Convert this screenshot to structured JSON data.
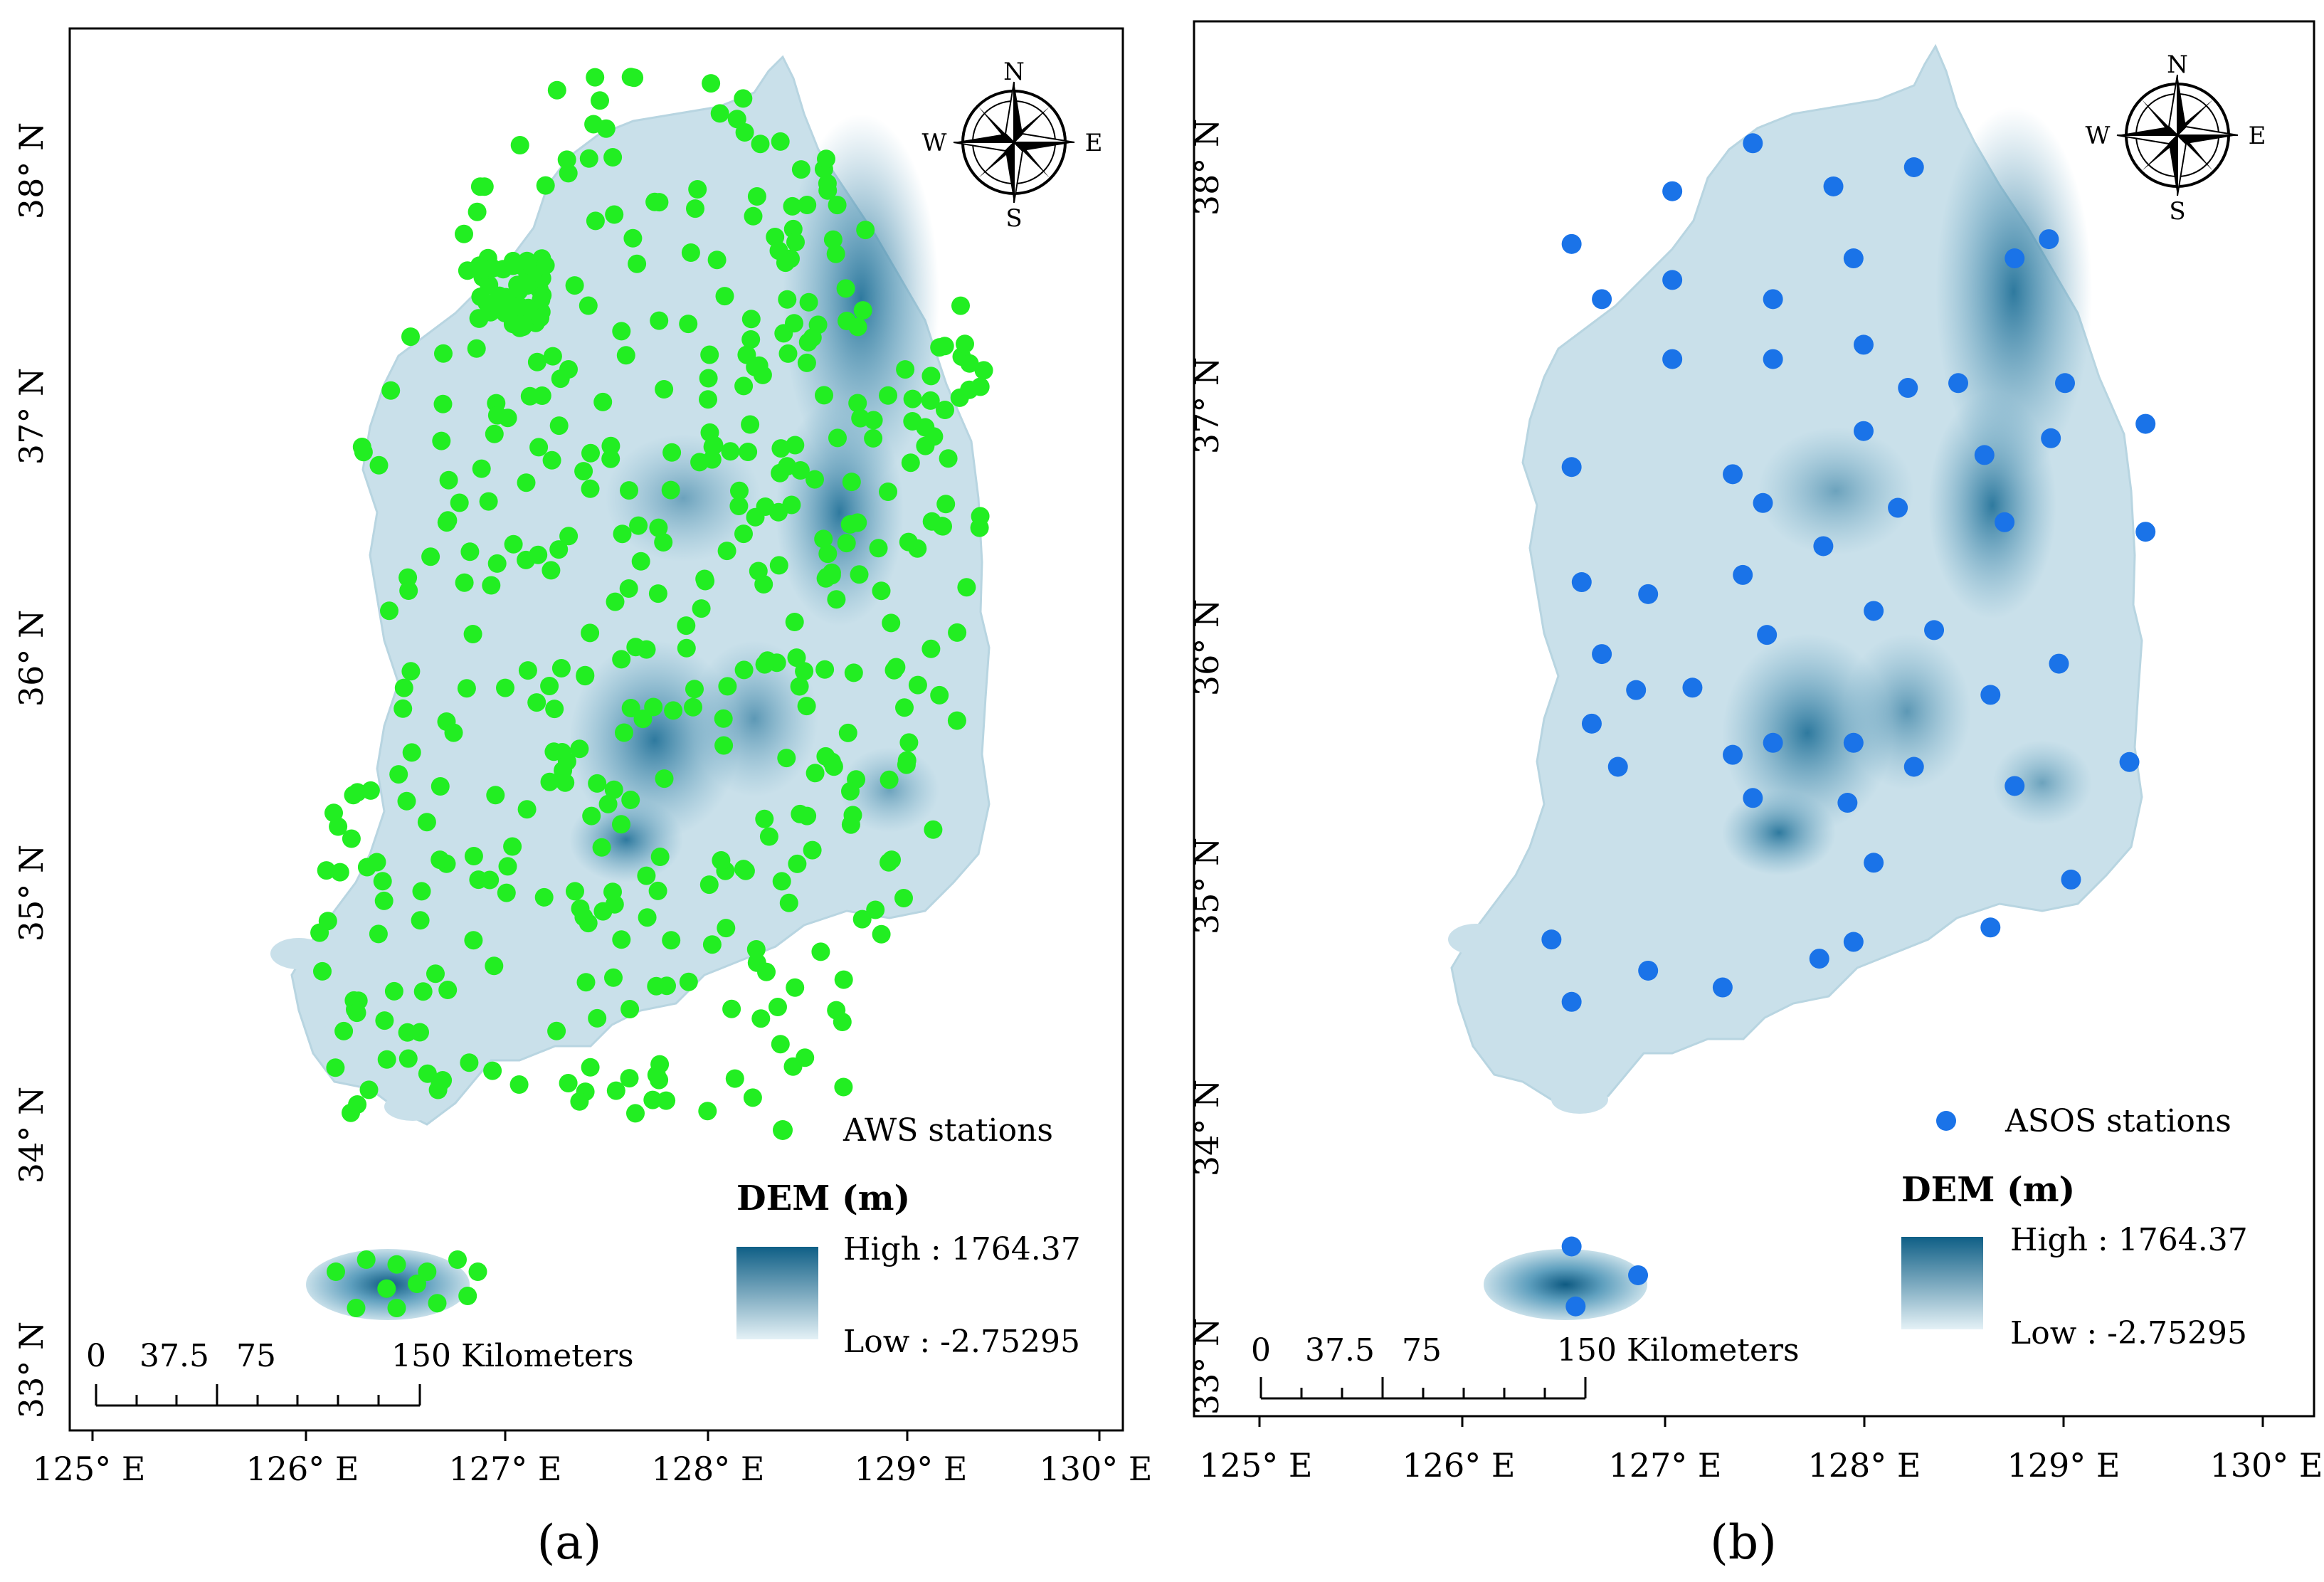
{
  "panels": [
    {
      "id": "a",
      "caption": "(a)",
      "x_ticks": [
        "125° E",
        "126° E",
        "127° E",
        "128° E",
        "129° E",
        "130° E"
      ],
      "y_ticks": [
        "38° N",
        "37° N",
        "36° N",
        "35° N",
        "34° N",
        "33° N"
      ],
      "compass": {
        "n": "N",
        "s": "S",
        "e": "E",
        "w": "W"
      },
      "legend": {
        "station_label": "AWS  stations",
        "station_color": "#22ee22"
      },
      "dem": {
        "title": "DEM (m)",
        "high": "High : 1764.37",
        "low": "Low : -2.75295"
      },
      "scale": {
        "t0": "0",
        "t1": "37.5",
        "t2": "75",
        "t3": "150 Kilometers"
      },
      "stations_count_shown": "approx. 480"
    },
    {
      "id": "b",
      "caption": "(b)",
      "x_ticks": [
        "125° E",
        "126° E",
        "127° E",
        "128° E",
        "129° E",
        "130° E"
      ],
      "y_ticks": [
        "38° N",
        "37° N",
        "36° N",
        "35° N",
        "34° N",
        "33° N"
      ],
      "compass": {
        "n": "N",
        "s": "S",
        "e": "E",
        "w": "W"
      },
      "legend": {
        "station_label": "ASOS stations",
        "station_color": "#1a73e8"
      },
      "dem": {
        "title": "DEM (m)",
        "high": "High : 1764.37",
        "low": "Low : -2.75295"
      },
      "scale": {
        "t0": "0",
        "t1": "37.5",
        "t2": "75",
        "t3": "150 Kilometers"
      },
      "stations": [
        {
          "lon": 127.45,
          "lat": 38.1
        },
        {
          "lon": 128.25,
          "lat": 38.0
        },
        {
          "lon": 127.05,
          "lat": 37.9
        },
        {
          "lon": 127.85,
          "lat": 37.92
        },
        {
          "lon": 126.55,
          "lat": 37.68
        },
        {
          "lon": 127.05,
          "lat": 37.53
        },
        {
          "lon": 127.55,
          "lat": 37.45
        },
        {
          "lon": 127.95,
          "lat": 37.62
        },
        {
          "lon": 128.75,
          "lat": 37.62
        },
        {
          "lon": 128.92,
          "lat": 37.7
        },
        {
          "lon": 126.7,
          "lat": 37.45
        },
        {
          "lon": 127.05,
          "lat": 37.2
        },
        {
          "lon": 127.55,
          "lat": 37.2
        },
        {
          "lon": 128.0,
          "lat": 37.26
        },
        {
          "lon": 128.22,
          "lat": 37.08
        },
        {
          "lon": 128.47,
          "lat": 37.1
        },
        {
          "lon": 129.0,
          "lat": 37.1
        },
        {
          "lon": 126.55,
          "lat": 36.75
        },
        {
          "lon": 127.35,
          "lat": 36.72
        },
        {
          "lon": 128.0,
          "lat": 36.9
        },
        {
          "lon": 128.93,
          "lat": 36.87
        },
        {
          "lon": 129.4,
          "lat": 36.93
        },
        {
          "lon": 127.5,
          "lat": 36.6
        },
        {
          "lon": 128.17,
          "lat": 36.58
        },
        {
          "lon": 128.6,
          "lat": 36.8
        },
        {
          "lon": 126.6,
          "lat": 36.27
        },
        {
          "lon": 126.93,
          "lat": 36.22
        },
        {
          "lon": 127.4,
          "lat": 36.3
        },
        {
          "lon": 127.8,
          "lat": 36.42
        },
        {
          "lon": 128.7,
          "lat": 36.52
        },
        {
          "lon": 129.4,
          "lat": 36.48
        },
        {
          "lon": 126.7,
          "lat": 35.97
        },
        {
          "lon": 127.52,
          "lat": 36.05
        },
        {
          "lon": 128.05,
          "lat": 36.15
        },
        {
          "lon": 128.35,
          "lat": 36.07
        },
        {
          "lon": 126.87,
          "lat": 35.82
        },
        {
          "lon": 127.15,
          "lat": 35.83
        },
        {
          "lon": 128.97,
          "lat": 35.93
        },
        {
          "lon": 126.65,
          "lat": 35.68
        },
        {
          "lon": 127.35,
          "lat": 35.55
        },
        {
          "lon": 127.55,
          "lat": 35.6
        },
        {
          "lon": 127.95,
          "lat": 35.6
        },
        {
          "lon": 128.63,
          "lat": 35.8
        },
        {
          "lon": 126.78,
          "lat": 35.5
        },
        {
          "lon": 127.45,
          "lat": 35.37
        },
        {
          "lon": 127.92,
          "lat": 35.35
        },
        {
          "lon": 128.25,
          "lat": 35.5
        },
        {
          "lon": 128.75,
          "lat": 35.42
        },
        {
          "lon": 129.32,
          "lat": 35.52
        },
        {
          "lon": 128.05,
          "lat": 35.1
        },
        {
          "lon": 129.03,
          "lat": 35.03
        },
        {
          "lon": 126.45,
          "lat": 34.78
        },
        {
          "lon": 126.93,
          "lat": 34.65
        },
        {
          "lon": 127.3,
          "lat": 34.58
        },
        {
          "lon": 127.78,
          "lat": 34.7
        },
        {
          "lon": 127.95,
          "lat": 34.77
        },
        {
          "lon": 128.63,
          "lat": 34.83
        },
        {
          "lon": 126.55,
          "lat": 34.52
        },
        {
          "lon": 126.55,
          "lat": 33.5
        },
        {
          "lon": 126.88,
          "lat": 33.38
        },
        {
          "lon": 126.57,
          "lat": 33.25
        }
      ]
    }
  ]
}
